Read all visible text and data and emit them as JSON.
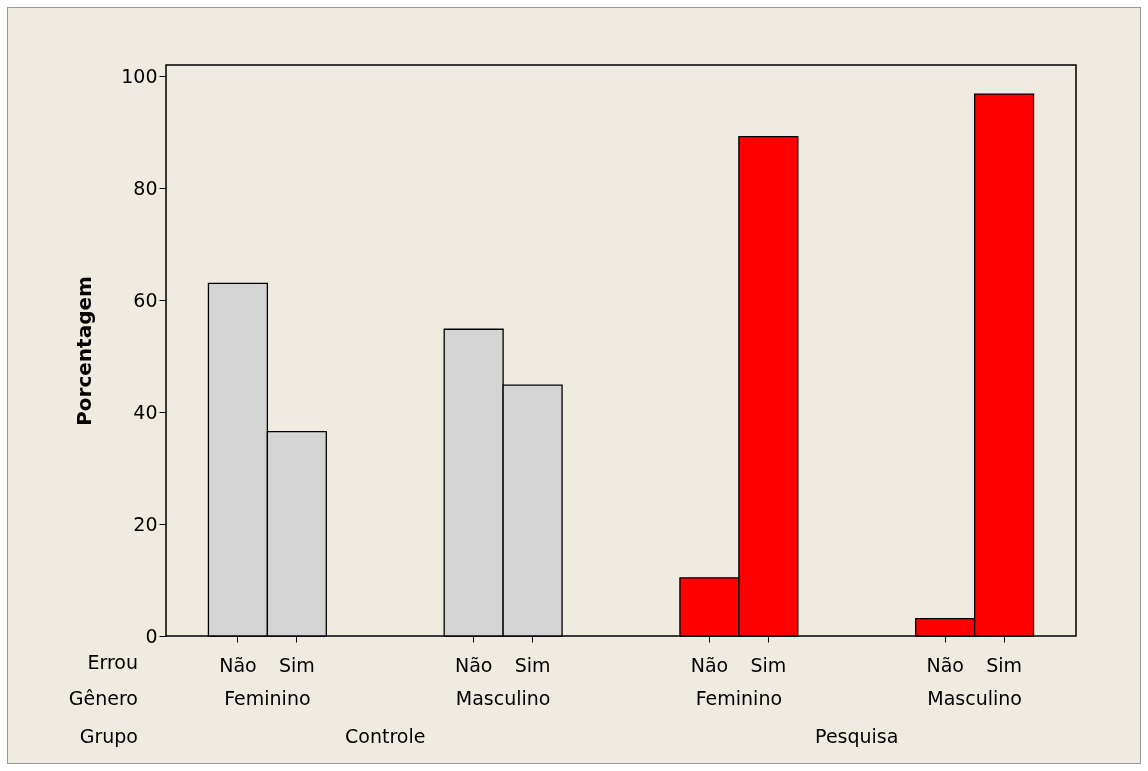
{
  "chart_data": {
    "type": "bar",
    "ylabel": "Porcentagem",
    "categories": [
      "Não",
      "Sim",
      "Não",
      "Sim",
      "Não",
      "Sim",
      "Não",
      "Sim"
    ],
    "values": [
      63.0,
      36.5,
      54.8,
      44.8,
      10.4,
      89.2,
      3.1,
      96.8
    ],
    "colors": [
      "#d4d4d4",
      "#d4d4d4",
      "#d4d4d4",
      "#d4d4d4",
      "#ff0000",
      "#ff0000",
      "#ff0000",
      "#ff0000"
    ],
    "ylim": [
      0,
      102
    ],
    "yticks": [
      0,
      20,
      40,
      60,
      80,
      100
    ],
    "annotations": [
      "Errou",
      "Gênero",
      "Grupo",
      "Feminino",
      "Masculino",
      "Feminino",
      "Masculino",
      "Controle",
      "Pesquisa"
    ],
    "grid": false
  }
}
